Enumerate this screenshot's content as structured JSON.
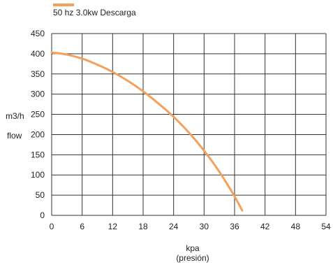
{
  "chart_data": {
    "type": "line",
    "xlabel": "kpa",
    "xlabel_sub": "(presión)",
    "ylabel_line1": "m3/h",
    "ylabel_line2": "flow",
    "xlim": [
      0,
      54
    ],
    "ylim": [
      0,
      450
    ],
    "x_ticks": [
      0,
      6,
      12,
      18,
      24,
      30,
      36,
      42,
      48,
      54
    ],
    "y_ticks": [
      0,
      50,
      100,
      150,
      200,
      250,
      300,
      350,
      400,
      450
    ],
    "grid": true,
    "legend_position": "top-left",
    "series": [
      {
        "name": "50 hz 3.0kw Descarga",
        "color": "#f5a05a",
        "x": [
          0,
          3,
          6,
          9,
          12,
          15,
          18,
          21,
          24,
          27,
          30,
          33,
          36,
          37.5
        ],
        "y": [
          403,
          398,
          388,
          373,
          355,
          333,
          307,
          277,
          244,
          205,
          160,
          108,
          47,
          12
        ]
      }
    ]
  }
}
